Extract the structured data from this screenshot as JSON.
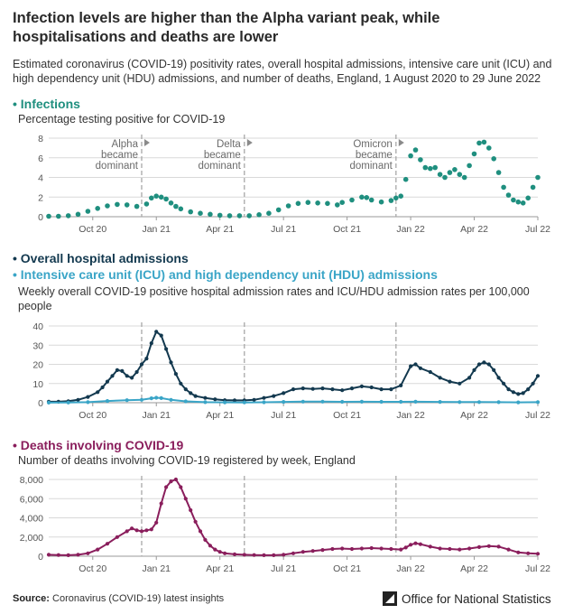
{
  "headline": "Infection levels are higher than the Alpha variant peak, while hospitalisations and deaths are lower",
  "intro": "Estimated coronavirus (COVID-19) positivity rates, overall hospital admissions, intensive care unit (ICU) and high dependency unit (HDU) admissions, and number of deaths, England, 1 August 2020 to 29 June 2022",
  "colors": {
    "infections": "#1f8f7f",
    "hospital": "#13394f",
    "icu": "#3aa5c7",
    "deaths": "#8a1e5c",
    "grid": "#d9d9d9",
    "annotation": "#a8a8a8"
  },
  "x_ticks": [
    "Oct 20",
    "Jan 21",
    "Apr 21",
    "Jul 21",
    "Oct 21",
    "Jan 22",
    "Apr 22",
    "Jul 22"
  ],
  "x_tick_weeks": [
    9,
    22,
    35,
    48,
    61,
    74,
    87,
    100
  ],
  "annotations": [
    {
      "week": 19,
      "label1": "Alpha",
      "label2": "became",
      "label3": "dominant"
    },
    {
      "week": 40,
      "label1": "Delta",
      "label2": "became",
      "label3": "dominant"
    },
    {
      "week": 71,
      "label1": "Omicron",
      "label2": "became",
      "label3": "dominant"
    }
  ],
  "panels": {
    "infections": {
      "title": "Infections",
      "subtitle": "Percentage testing positive for COVID-19"
    },
    "hospital": {
      "title": "Overall hospital admissions",
      "title2": "Intensive care unit (ICU) and high dependency unit (HDU) admissions",
      "subtitle": "Weekly overall COVID-19 positive hospital admission rates and ICU/HDU admission rates per 100,000 people"
    },
    "deaths": {
      "title": "Deaths involving COVID-19",
      "subtitle": "Number of deaths involving COVID-19 registered by week, England"
    }
  },
  "footer": {
    "source_label": "Source:",
    "source_text": "Coronavirus (COVID-19) latest insights",
    "publisher": "Office for National Statistics"
  },
  "chart_data": [
    {
      "type": "scatter",
      "title": "Infections",
      "ylabel": "Percentage testing positive for COVID-19",
      "ylim": [
        0,
        8
      ],
      "y_ticks": [
        0,
        2,
        4,
        6,
        8
      ],
      "x_unit": "weeks from 1 August 2020",
      "series": [
        {
          "name": "Infections",
          "points": [
            [
              0,
              0.05
            ],
            [
              2,
              0.05
            ],
            [
              4,
              0.1
            ],
            [
              6,
              0.25
            ],
            [
              8,
              0.55
            ],
            [
              10,
              0.85
            ],
            [
              12,
              1.1
            ],
            [
              14,
              1.25
            ],
            [
              16,
              1.2
            ],
            [
              18,
              1.05
            ],
            [
              20,
              1.3
            ],
            [
              21,
              1.9
            ],
            [
              22,
              2.1
            ],
            [
              23,
              2.0
            ],
            [
              24,
              1.8
            ],
            [
              25,
              1.4
            ],
            [
              26,
              1.05
            ],
            [
              27,
              0.8
            ],
            [
              29,
              0.5
            ],
            [
              31,
              0.35
            ],
            [
              33,
              0.25
            ],
            [
              35,
              0.15
            ],
            [
              37,
              0.1
            ],
            [
              39,
              0.1
            ],
            [
              41,
              0.1
            ],
            [
              43,
              0.2
            ],
            [
              45,
              0.35
            ],
            [
              47,
              0.7
            ],
            [
              49,
              1.1
            ],
            [
              51,
              1.35
            ],
            [
              53,
              1.45
            ],
            [
              55,
              1.4
            ],
            [
              57,
              1.35
            ],
            [
              59,
              1.2
            ],
            [
              60,
              1.45
            ],
            [
              62,
              1.7
            ],
            [
              64,
              2.0
            ],
            [
              65,
              1.95
            ],
            [
              66,
              1.7
            ],
            [
              68,
              1.5
            ],
            [
              70,
              1.65
            ],
            [
              71,
              1.9
            ],
            [
              72,
              2.1
            ],
            [
              73,
              3.8
            ],
            [
              74,
              6.2
            ],
            [
              75,
              6.8
            ],
            [
              76,
              5.8
            ],
            [
              77,
              5.0
            ],
            [
              78,
              4.9
            ],
            [
              79,
              5.0
            ],
            [
              80,
              4.3
            ],
            [
              81,
              4.0
            ],
            [
              82,
              4.5
            ],
            [
              83,
              4.8
            ],
            [
              84,
              4.3
            ],
            [
              85,
              4.0
            ],
            [
              86,
              5.2
            ],
            [
              87,
              6.4
            ],
            [
              88,
              7.5
            ],
            [
              89,
              7.6
            ],
            [
              90,
              7.0
            ],
            [
              91,
              5.9
            ],
            [
              92,
              4.5
            ],
            [
              93,
              3.0
            ],
            [
              94,
              2.2
            ],
            [
              95,
              1.7
            ],
            [
              96,
              1.5
            ],
            [
              97,
              1.4
            ],
            [
              98,
              1.9
            ],
            [
              99,
              3.0
            ],
            [
              100,
              4.0
            ]
          ]
        }
      ]
    },
    {
      "type": "line",
      "title": "Overall hospital admissions; Intensive care unit (ICU) and high dependency unit (HDU) admissions",
      "ylabel": "Weekly overall COVID-19 positive hospital admission rates and ICU/HDU admission rates per 100,000 people",
      "ylim": [
        0,
        40
      ],
      "y_ticks": [
        0,
        10,
        20,
        30,
        40
      ],
      "x_unit": "weeks from 1 August 2020",
      "series": [
        {
          "name": "Overall hospital admissions",
          "points": [
            [
              0,
              0.5
            ],
            [
              2,
              0.5
            ],
            [
              4,
              0.8
            ],
            [
              6,
              1.5
            ],
            [
              8,
              3
            ],
            [
              10,
              5.5
            ],
            [
              11,
              8
            ],
            [
              12,
              11
            ],
            [
              13,
              14
            ],
            [
              14,
              17
            ],
            [
              15,
              16.5
            ],
            [
              16,
              14
            ],
            [
              17,
              13
            ],
            [
              18,
              16
            ],
            [
              19,
              20
            ],
            [
              20,
              23
            ],
            [
              21,
              31
            ],
            [
              22,
              37
            ],
            [
              23,
              35
            ],
            [
              24,
              28
            ],
            [
              25,
              21
            ],
            [
              26,
              15
            ],
            [
              27,
              10
            ],
            [
              28,
              7
            ],
            [
              29,
              5
            ],
            [
              30,
              3.5
            ],
            [
              32,
              2.5
            ],
            [
              34,
              1.8
            ],
            [
              36,
              1.3
            ],
            [
              38,
              1.2
            ],
            [
              40,
              1.2
            ],
            [
              42,
              1.5
            ],
            [
              44,
              2.5
            ],
            [
              46,
              3.5
            ],
            [
              48,
              5
            ],
            [
              50,
              7
            ],
            [
              52,
              7.5
            ],
            [
              54,
              7.2
            ],
            [
              56,
              7.5
            ],
            [
              58,
              7
            ],
            [
              60,
              6.5
            ],
            [
              62,
              7.5
            ],
            [
              64,
              8.5
            ],
            [
              66,
              8
            ],
            [
              68,
              7
            ],
            [
              70,
              7
            ],
            [
              72,
              9
            ],
            [
              74,
              19
            ],
            [
              75,
              20
            ],
            [
              76,
              18
            ],
            [
              78,
              16
            ],
            [
              80,
              13
            ],
            [
              82,
              11
            ],
            [
              84,
              10
            ],
            [
              86,
              13
            ],
            [
              87,
              17
            ],
            [
              88,
              20
            ],
            [
              89,
              21
            ],
            [
              90,
              20
            ],
            [
              91,
              17
            ],
            [
              92,
              13
            ],
            [
              93,
              10
            ],
            [
              94,
              7
            ],
            [
              95,
              5.5
            ],
            [
              96,
              4.5
            ],
            [
              97,
              5
            ],
            [
              98,
              7
            ],
            [
              99,
              10
            ],
            [
              100,
              14
            ]
          ]
        },
        {
          "name": "ICU/HDU admissions",
          "points": [
            [
              0,
              0.05
            ],
            [
              4,
              0.1
            ],
            [
              8,
              0.3
            ],
            [
              12,
              0.9
            ],
            [
              16,
              1.3
            ],
            [
              19,
              1.5
            ],
            [
              21,
              2.3
            ],
            [
              22,
              2.6
            ],
            [
              23,
              2.4
            ],
            [
              25,
              1.5
            ],
            [
              28,
              0.7
            ],
            [
              32,
              0.3
            ],
            [
              36,
              0.2
            ],
            [
              40,
              0.15
            ],
            [
              44,
              0.25
            ],
            [
              48,
              0.4
            ],
            [
              52,
              0.55
            ],
            [
              56,
              0.55
            ],
            [
              60,
              0.45
            ],
            [
              64,
              0.5
            ],
            [
              68,
              0.45
            ],
            [
              72,
              0.45
            ],
            [
              75,
              0.5
            ],
            [
              80,
              0.4
            ],
            [
              84,
              0.35
            ],
            [
              88,
              0.35
            ],
            [
              92,
              0.3
            ],
            [
              96,
              0.2
            ],
            [
              100,
              0.3
            ]
          ]
        }
      ]
    },
    {
      "type": "line",
      "title": "Deaths involving COVID-19",
      "ylabel": "Number of deaths involving COVID-19 registered by week, England",
      "ylim": [
        0,
        8000
      ],
      "y_ticks": [
        0,
        2000,
        4000,
        6000,
        8000
      ],
      "y_tick_labels": [
        "0",
        "2,000",
        "4,000",
        "6,000",
        "8,000"
      ],
      "x_unit": "weeks from 1 August 2020",
      "series": [
        {
          "name": "Deaths involving COVID-19",
          "points": [
            [
              0,
              150
            ],
            [
              2,
              120
            ],
            [
              4,
              100
            ],
            [
              6,
              150
            ],
            [
              8,
              300
            ],
            [
              10,
              700
            ],
            [
              12,
              1300
            ],
            [
              14,
              2000
            ],
            [
              16,
              2600
            ],
            [
              17,
              2900
            ],
            [
              18,
              2700
            ],
            [
              19,
              2600
            ],
            [
              20,
              2700
            ],
            [
              21,
              2800
            ],
            [
              22,
              3500
            ],
            [
              23,
              5500
            ],
            [
              24,
              7200
            ],
            [
              25,
              7800
            ],
            [
              26,
              8000
            ],
            [
              27,
              7200
            ],
            [
              28,
              6000
            ],
            [
              29,
              4800
            ],
            [
              30,
              3600
            ],
            [
              31,
              2600
            ],
            [
              32,
              1700
            ],
            [
              33,
              1100
            ],
            [
              34,
              700
            ],
            [
              35,
              450
            ],
            [
              36,
              300
            ],
            [
              38,
              200
            ],
            [
              40,
              150
            ],
            [
              42,
              120
            ],
            [
              44,
              100
            ],
            [
              46,
              100
            ],
            [
              48,
              150
            ],
            [
              50,
              300
            ],
            [
              52,
              450
            ],
            [
              54,
              550
            ],
            [
              56,
              650
            ],
            [
              58,
              750
            ],
            [
              60,
              800
            ],
            [
              62,
              750
            ],
            [
              64,
              800
            ],
            [
              66,
              850
            ],
            [
              68,
              800
            ],
            [
              70,
              750
            ],
            [
              72,
              700
            ],
            [
              73,
              900
            ],
            [
              74,
              1200
            ],
            [
              75,
              1350
            ],
            [
              76,
              1250
            ],
            [
              78,
              1000
            ],
            [
              80,
              800
            ],
            [
              82,
              750
            ],
            [
              84,
              700
            ],
            [
              86,
              800
            ],
            [
              88,
              950
            ],
            [
              90,
              1050
            ],
            [
              92,
              1000
            ],
            [
              94,
              700
            ],
            [
              96,
              400
            ],
            [
              98,
              300
            ],
            [
              100,
              250
            ]
          ]
        }
      ]
    }
  ]
}
